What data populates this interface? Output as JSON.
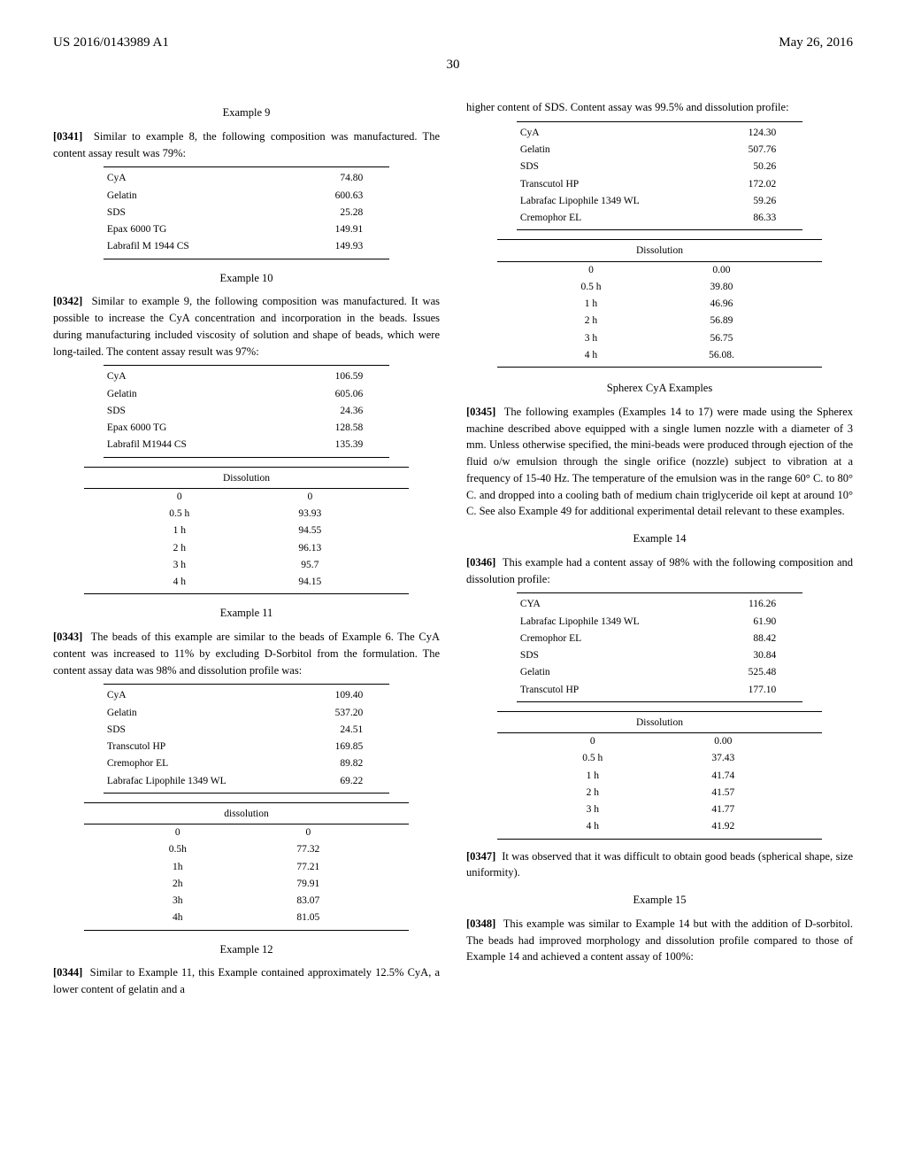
{
  "header": {
    "pub_number": "US 2016/0143989 A1",
    "date": "May 26, 2016",
    "page_num": "30"
  },
  "left_col": {
    "ex9": {
      "title": "Example 9",
      "para_num": "[0341]",
      "para_text": "Similar to example 8, the following composition was manufactured. The content assay result was 79%:",
      "rows": [
        [
          "CyA",
          "74.80"
        ],
        [
          "Gelatin",
          "600.63"
        ],
        [
          "SDS",
          "25.28"
        ],
        [
          "Epax 6000 TG",
          "149.91"
        ],
        [
          "Labrafil M 1944 CS",
          "149.93"
        ]
      ]
    },
    "ex10": {
      "title": "Example 10",
      "para_num": "[0342]",
      "para_text": "Similar to example 9, the following composition was manufactured. It was possible to increase the CyA concentration and incorporation in the beads. Issues during manufacturing included viscosity of solution and shape of beads, which were long-tailed. The content assay result was 97%:",
      "comp_rows": [
        [
          "CyA",
          "106.59"
        ],
        [
          "Gelatin",
          "605.06"
        ],
        [
          "SDS",
          "24.36"
        ],
        [
          "Epax 6000 TG",
          "128.58"
        ],
        [
          "Labrafil M1944 CS",
          "135.39"
        ]
      ],
      "diss_label": "Dissolution",
      "diss_rows": [
        [
          "0",
          "0"
        ],
        [
          "0.5 h",
          "93.93"
        ],
        [
          "1 h",
          "94.55"
        ],
        [
          "2 h",
          "96.13"
        ],
        [
          "3 h",
          "95.7"
        ],
        [
          "4 h",
          "94.15"
        ]
      ]
    },
    "ex11": {
      "title": "Example 11",
      "para_num": "[0343]",
      "para_text": "The beads of this example are similar to the beads of Example 6. The CyA content was increased to 11% by excluding D-Sorbitol from the formulation. The content assay data was 98% and dissolution profile was:",
      "comp_rows": [
        [
          "CyA",
          "109.40"
        ],
        [
          "Gelatin",
          "537.20"
        ],
        [
          "SDS",
          "24.51"
        ],
        [
          "Transcutol HP",
          "169.85"
        ],
        [
          "Cremophor EL",
          "89.82"
        ],
        [
          "Labrafac Lipophile 1349 WL",
          "69.22"
        ]
      ],
      "diss_label": "dissolution",
      "diss_rows": [
        [
          "0",
          "0"
        ],
        [
          "0.5h",
          "77.32"
        ],
        [
          "1h",
          "77.21"
        ],
        [
          "2h",
          "79.91"
        ],
        [
          "3h",
          "83.07"
        ],
        [
          "4h",
          "81.05"
        ]
      ]
    },
    "ex12": {
      "title": "Example 12",
      "para_num": "[0344]",
      "para_text": "Similar to Example 11, this Example contained approximately 12.5% CyA, a lower content of gelatin and a"
    }
  },
  "right_col": {
    "cont12": {
      "lead_text": "higher content of SDS. Content assay was 99.5% and dissolution profile:",
      "comp_rows": [
        [
          "CyA",
          "124.30"
        ],
        [
          "Gelatin",
          "507.76"
        ],
        [
          "SDS",
          "50.26"
        ],
        [
          "Transcutol HP",
          "172.02"
        ],
        [
          "Labrafac Lipophile 1349 WL",
          "59.26"
        ],
        [
          "Cremophor EL",
          "86.33"
        ]
      ],
      "diss_label": "Dissolution",
      "diss_rows": [
        [
          "0",
          "0.00"
        ],
        [
          "0.5 h",
          "39.80"
        ],
        [
          "1 h",
          "46.96"
        ],
        [
          "2 h",
          "56.89"
        ],
        [
          "3 h",
          "56.75"
        ],
        [
          "4 h",
          "56.08."
        ]
      ]
    },
    "spherex": {
      "title": "Spherex CyA Examples",
      "para_num": "[0345]",
      "para_text": "The following examples (Examples 14 to 17) were made using the Spherex machine described above equipped with a single lumen nozzle with a diameter of 3 mm. Unless otherwise specified, the mini-beads were produced through ejection of the fluid o/w emulsion through the single orifice (nozzle) subject to vibration at a frequency of 15-40 Hz. The temperature of the emulsion was in the range 60° C. to 80° C. and dropped into a cooling bath of medium chain triglyceride oil kept at around 10° C. See also Example 49 for additional experimental detail relevant to these examples."
    },
    "ex14": {
      "title": "Example 14",
      "para_num": "[0346]",
      "para_text": "This example had a content assay of 98% with the following composition and dissolution profile:",
      "comp_rows": [
        [
          "CYA",
          "116.26"
        ],
        [
          "Labrafac Lipophile 1349 WL",
          "61.90"
        ],
        [
          "Cremophor EL",
          "88.42"
        ],
        [
          "SDS",
          "30.84"
        ],
        [
          "Gelatin",
          "525.48"
        ],
        [
          "Transcutol HP",
          "177.10"
        ]
      ],
      "diss_label": "Dissolution",
      "diss_rows": [
        [
          "0",
          "0.00"
        ],
        [
          "0.5 h",
          "37.43"
        ],
        [
          "1 h",
          "41.74"
        ],
        [
          "2 h",
          "41.57"
        ],
        [
          "3 h",
          "41.77"
        ],
        [
          "4 h",
          "41.92"
        ]
      ],
      "para2_num": "[0347]",
      "para2_text": "It was observed that it was difficult to obtain good beads (spherical shape, size uniformity)."
    },
    "ex15": {
      "title": "Example 15",
      "para_num": "[0348]",
      "para_text": "This example was similar to Example 14 but with the addition of D-sorbitol. The beads had improved morphology and dissolution profile compared to those of Example 14 and achieved a content assay of 100%:"
    }
  }
}
